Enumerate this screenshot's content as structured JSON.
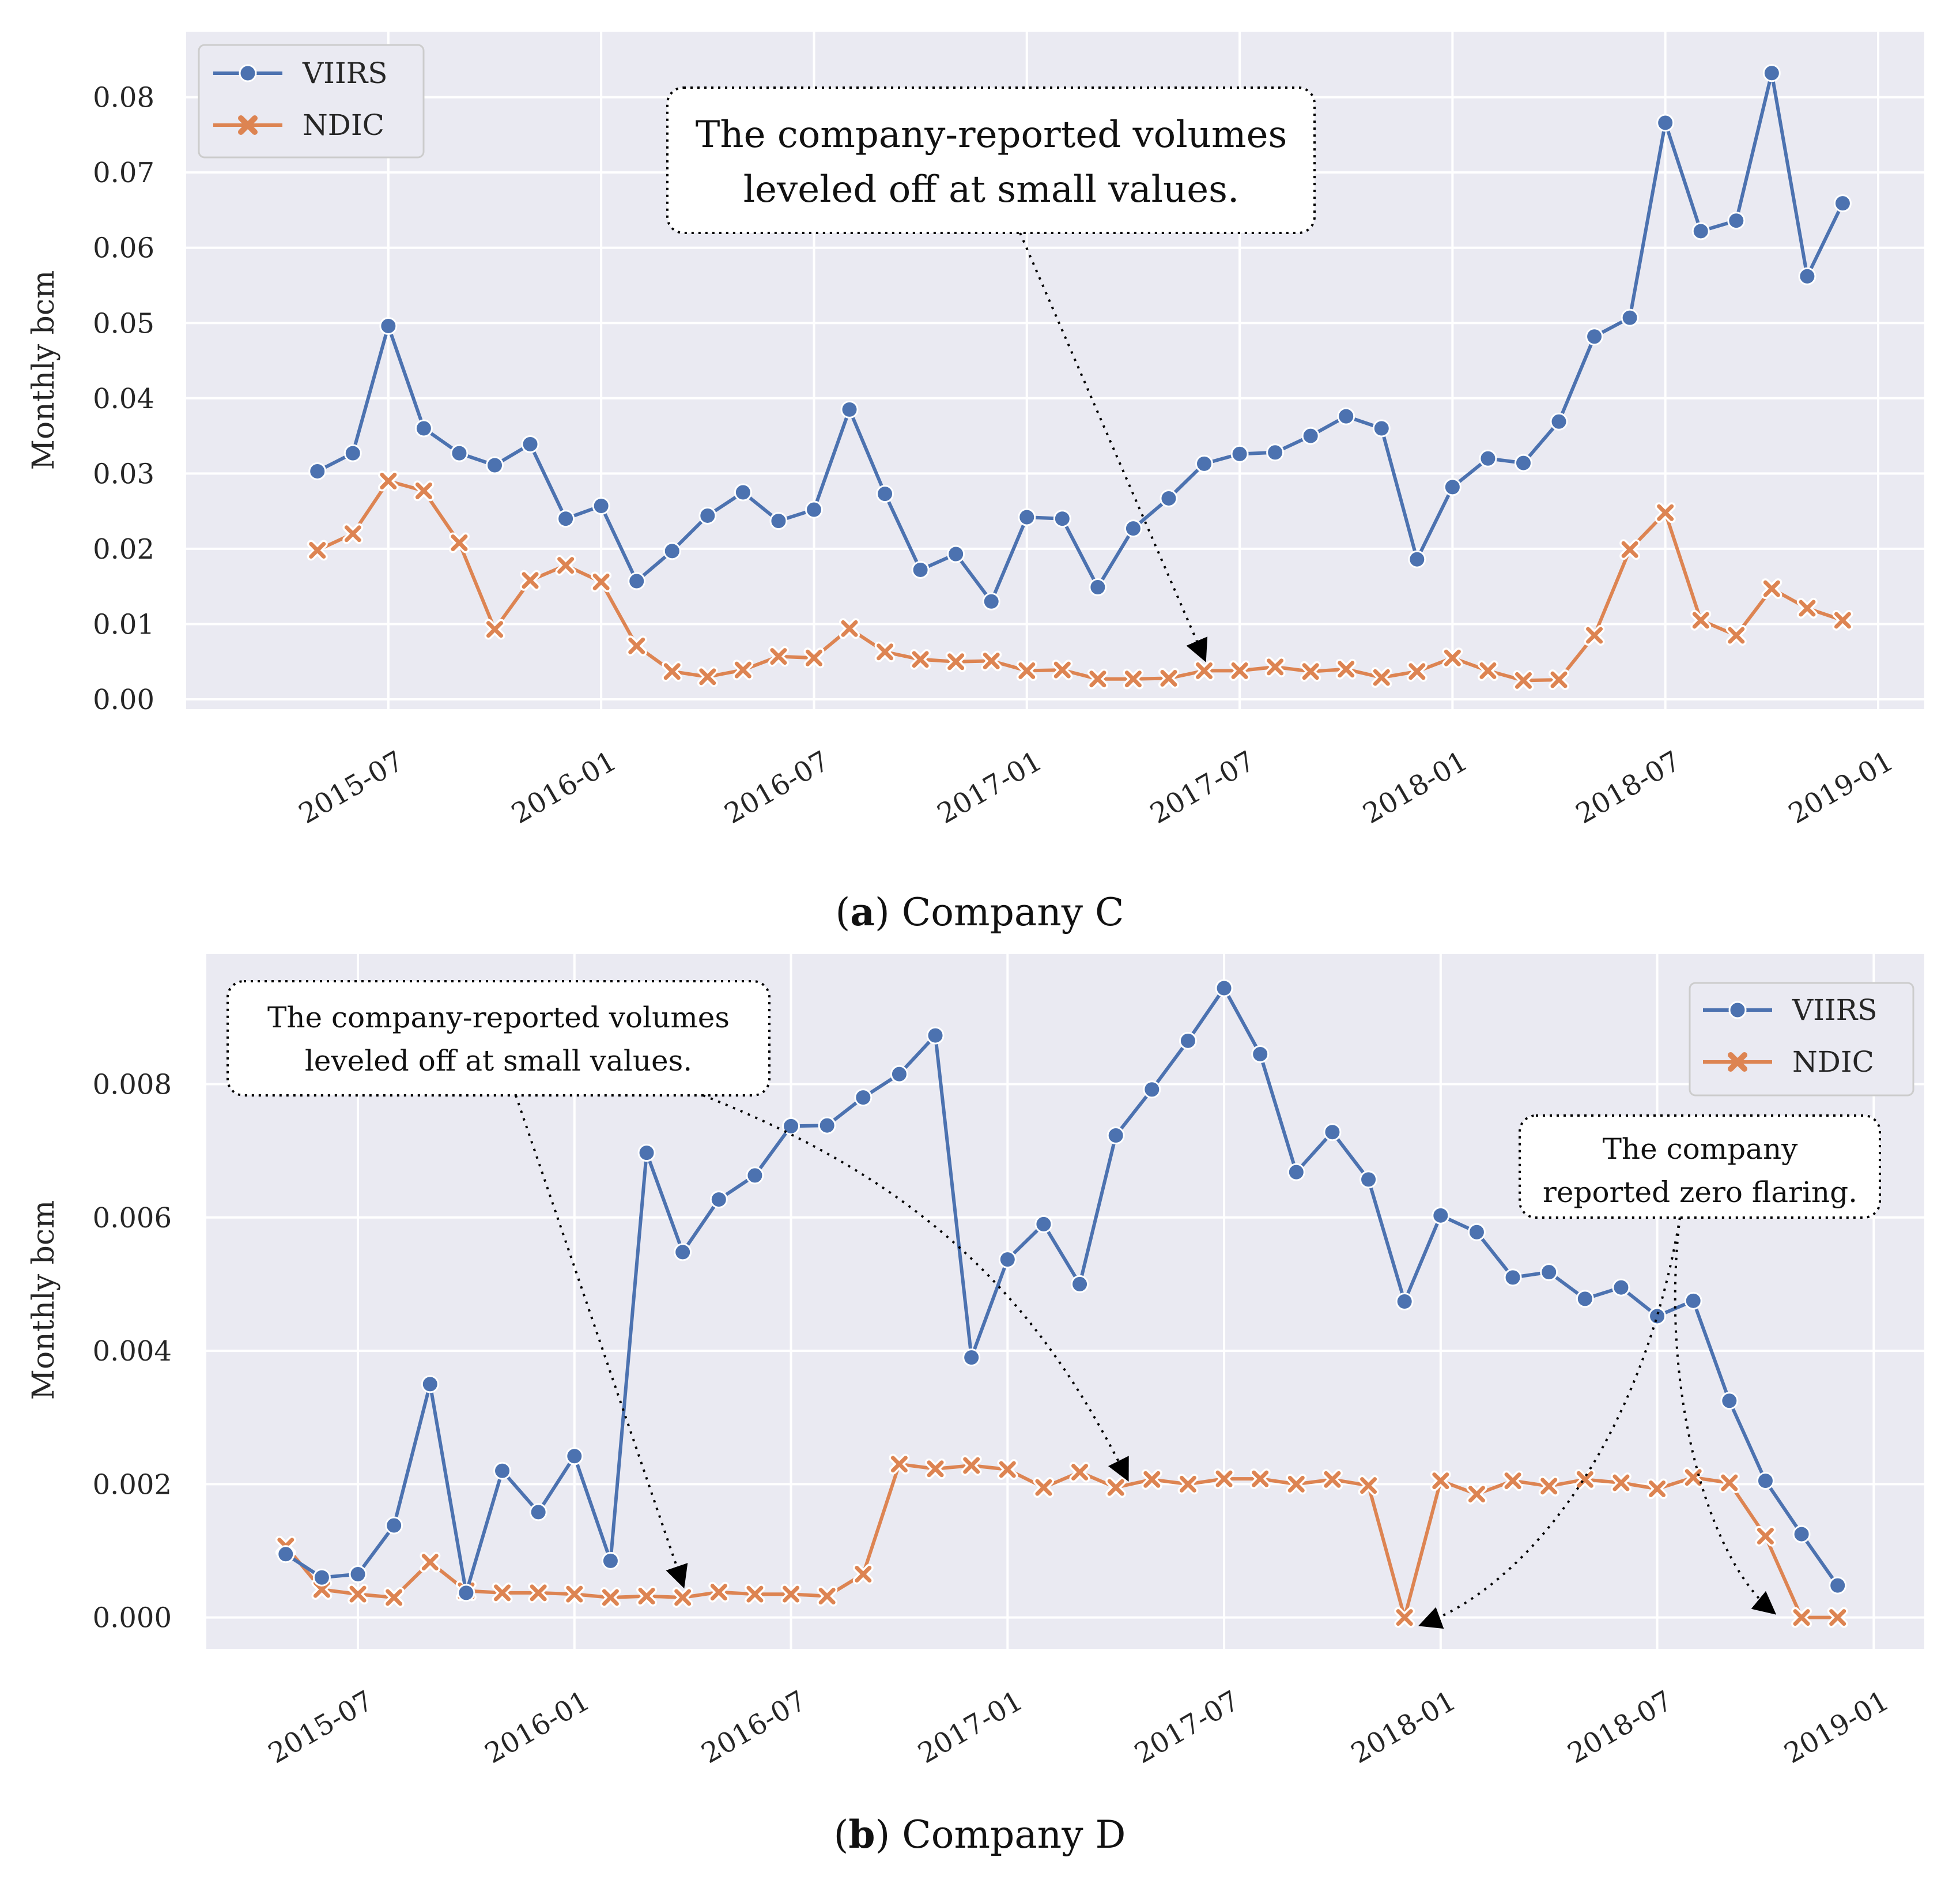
{
  "colors": {
    "viirs": "#4c72b0",
    "ndic": "#dd8452",
    "panel_bg": "#eaeaf2",
    "grid": "#ffffff"
  },
  "chart_data": [
    {
      "id": "a",
      "type": "line",
      "caption_letter": "a",
      "caption_text": "Company C",
      "ylabel": "Monthly bcm",
      "ylim": [
        -0.0013,
        0.0887
      ],
      "yticks": [
        "0.00",
        "0.01",
        "0.02",
        "0.03",
        "0.04",
        "0.05",
        "0.06",
        "0.07",
        "0.08"
      ],
      "ytick_values": [
        0,
        0.01,
        0.02,
        0.03,
        0.04,
        0.05,
        0.06,
        0.07,
        0.08
      ],
      "xlim": [
        -3.7,
        45.3
      ],
      "xticks": [
        "2015-07",
        "2016-01",
        "2016-07",
        "2017-01",
        "2017-07",
        "2018-01",
        "2018-07",
        "2019-01"
      ],
      "xtick_positions": [
        2,
        8,
        14,
        20,
        26,
        32,
        38,
        44
      ],
      "x_start_month": "2015-05",
      "legend": {
        "placement": "top-left",
        "entries": [
          "VIIRS",
          "NDIC"
        ]
      },
      "series": [
        {
          "name": "VIIRS",
          "marker": "circle",
          "values": [
            0.0303,
            0.0327,
            0.0496,
            0.036,
            0.0327,
            0.0311,
            0.0339,
            0.024,
            0.0257,
            0.0157,
            0.0197,
            0.0244,
            0.0275,
            0.0237,
            0.0252,
            0.0385,
            0.0273,
            0.0172,
            0.0193,
            0.013,
            0.0242,
            0.024,
            0.0149,
            0.0227,
            0.0267,
            0.0313,
            0.0326,
            0.0328,
            0.035,
            0.0376,
            0.036,
            0.0186,
            0.0282,
            0.032,
            0.0314,
            0.0369,
            0.0482,
            0.0507,
            0.0766,
            0.0622,
            0.0636,
            0.0832,
            0.0562,
            0.0659
          ]
        },
        {
          "name": "NDIC",
          "marker": "x",
          "values": [
            0.0198,
            0.022,
            0.029,
            0.0277,
            0.0208,
            0.0093,
            0.0158,
            0.0178,
            0.0156,
            0.0071,
            0.0037,
            0.003,
            0.0039,
            0.0057,
            0.0055,
            0.0094,
            0.0063,
            0.0053,
            0.005,
            0.0051,
            0.0038,
            0.0039,
            0.0027,
            0.0027,
            0.0028,
            0.0038,
            0.0038,
            0.0043,
            0.0037,
            0.004,
            0.0029,
            0.0037,
            0.0055,
            0.0038,
            0.0025,
            0.0026,
            0.0085,
            0.0199,
            0.0248,
            0.0105,
            0.0085,
            0.0147,
            0.0121,
            0.0105
          ]
        }
      ],
      "annotations": [
        {
          "lines": [
            "The company-reported volumes",
            "leveled off at small values."
          ],
          "target": {
            "x": 25,
            "y": 0.0038
          }
        }
      ]
    },
    {
      "id": "b",
      "type": "line",
      "caption_letter": "b",
      "caption_text": "Company D",
      "ylabel": "Monthly bcm",
      "ylim": [
        -0.00047,
        0.00995
      ],
      "yticks": [
        "0.000",
        "0.002",
        "0.004",
        "0.006",
        "0.008"
      ],
      "ytick_values": [
        0,
        0.002,
        0.004,
        0.006,
        0.008
      ],
      "xlim": [
        -2.2,
        45.4
      ],
      "xticks": [
        "2015-07",
        "2016-01",
        "2016-07",
        "2017-01",
        "2017-07",
        "2018-01",
        "2018-07",
        "2019-01"
      ],
      "xtick_positions": [
        2,
        8,
        14,
        20,
        26,
        32,
        38,
        44
      ],
      "x_start_month": "2015-05",
      "legend": {
        "placement": "top-right",
        "entries": [
          "VIIRS",
          "NDIC"
        ]
      },
      "series": [
        {
          "name": "VIIRS",
          "marker": "circle",
          "values": [
            0.00095,
            0.0006,
            0.00065,
            0.00138,
            0.0035,
            0.00037,
            0.0022,
            0.00158,
            0.00242,
            0.00085,
            0.00697,
            0.00548,
            0.00627,
            0.00663,
            0.00737,
            0.00738,
            0.0078,
            0.00815,
            0.00873,
            0.0039,
            0.00537,
            0.0059,
            0.005,
            0.00723,
            0.00792,
            0.00865,
            0.00944,
            0.00845,
            0.00668,
            0.00728,
            0.00657,
            0.00474,
            0.00603,
            0.00578,
            0.0051,
            0.00518,
            0.00478,
            0.00495,
            0.00452,
            0.00475,
            0.00325,
            0.00205,
            0.00125,
            0.00048
          ]
        },
        {
          "name": "NDIC",
          "marker": "x",
          "values": [
            0.00107,
            0.00042,
            0.00035,
            0.0003,
            0.00083,
            0.0004,
            0.00037,
            0.00037,
            0.00035,
            0.0003,
            0.00032,
            0.0003,
            0.00038,
            0.00035,
            0.00035,
            0.00032,
            0.00065,
            0.0023,
            0.00223,
            0.00228,
            0.00222,
            0.00195,
            0.00218,
            0.00195,
            0.00207,
            0.002,
            0.00208,
            0.00208,
            0.002,
            0.00207,
            0.00198,
            0.0,
            0.00205,
            0.00185,
            0.00205,
            0.00197,
            0.00207,
            0.00202,
            0.00193,
            0.0021,
            0.00202,
            0.00122,
            0.0,
            0.0
          ]
        }
      ],
      "annotations": [
        {
          "lines": [
            "The company-reported volumes",
            "leveled off at small values."
          ],
          "targets": [
            {
              "x": 11,
              "y": 0.0005
            },
            {
              "x": 23.3,
              "y": 0.0021
            }
          ]
        },
        {
          "lines": [
            "The company",
            "reported zero flaring."
          ],
          "targets": [
            {
              "x": 31.5,
              "y": 0.0
            },
            {
              "x": 41.2,
              "y": 0.0
            }
          ]
        }
      ]
    }
  ]
}
